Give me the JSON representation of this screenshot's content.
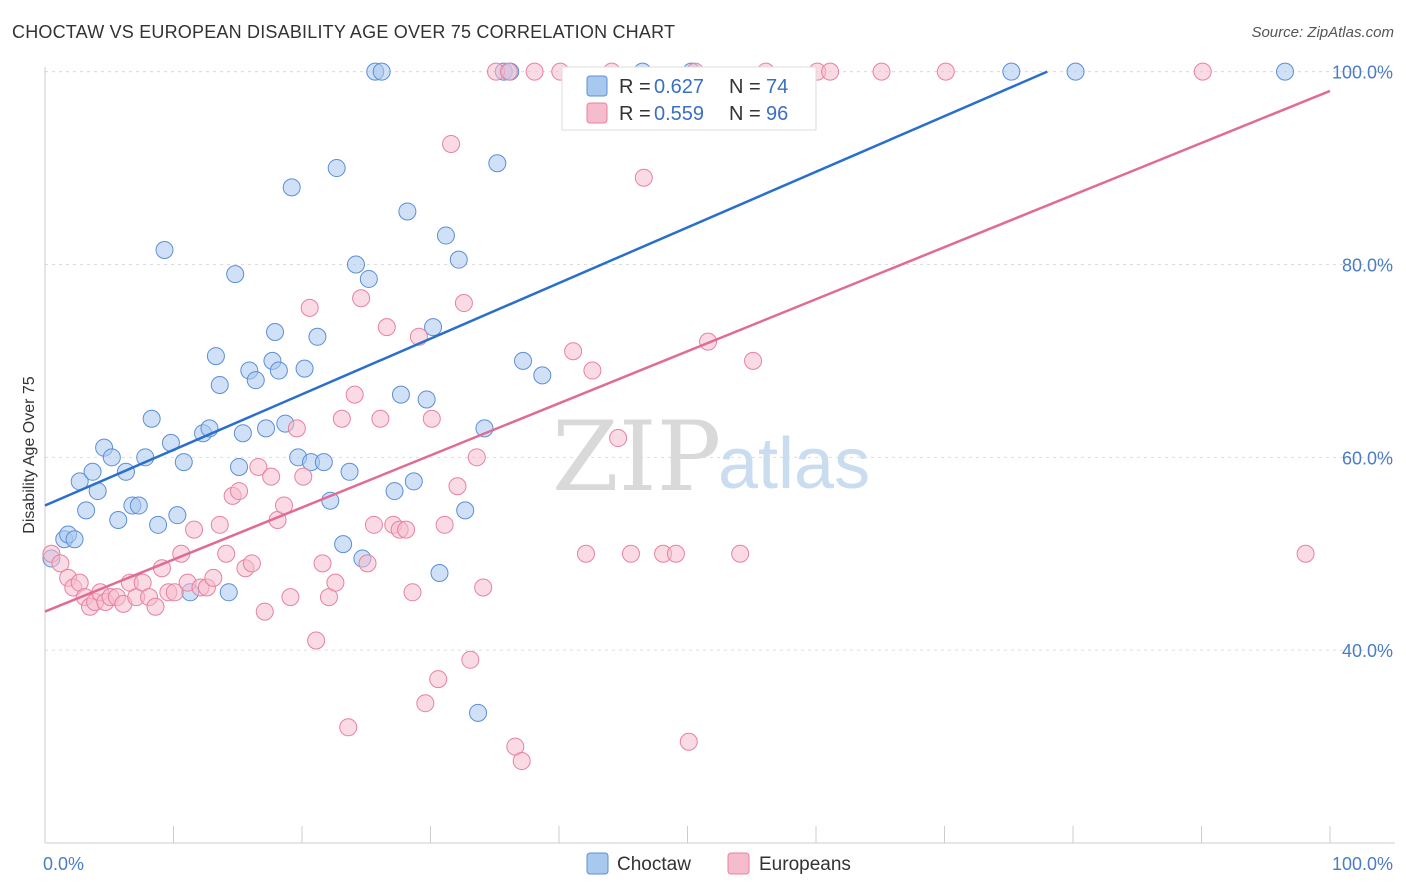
{
  "title": "CHOCTAW VS EUROPEAN DISABILITY AGE OVER 75 CORRELATION CHART",
  "source": "Source: ZipAtlas.com",
  "watermark": {
    "zip": "ZIP",
    "atlas": "atlas"
  },
  "legend": {
    "rows": [
      {
        "r_label": "R =",
        "r_value": "0.627",
        "n_label": "N =",
        "n_value": "74",
        "color": "#a9c8f0",
        "stroke": "#5b8fd6"
      },
      {
        "r_label": "R =",
        "r_value": "0.559",
        "n_label": "N =",
        "n_value": "96",
        "color": "#f5bccd",
        "stroke": "#e8829e"
      }
    ]
  },
  "chart_data": {
    "type": "scatter",
    "title": "CHOCTAW VS EUROPEAN DISABILITY AGE OVER 75 CORRELATION CHART",
    "xlabel": "",
    "ylabel": "Disability Age Over 75",
    "xlim": [
      0,
      100
    ],
    "ylim": [
      20,
      101
    ],
    "x_tick_labels": [
      "0.0%",
      "100.0%"
    ],
    "y_ticks": [
      40,
      60,
      80,
      100
    ],
    "y_tick_labels": [
      "40.0%",
      "60.0%",
      "80.0%",
      "100.0%"
    ],
    "grid": true,
    "legend_position": "top-center",
    "series": [
      {
        "name": "Choctaw",
        "color": "#a9c8f0",
        "stroke": "#5b8fd6",
        "line_color": "#2a6fcc",
        "trend": {
          "x0": 0,
          "y0": 55,
          "x1": 78,
          "y1": 100
        },
        "points": [
          [
            0.5,
            49.5
          ],
          [
            1.5,
            51.5
          ],
          [
            1.8,
            52
          ],
          [
            2.3,
            51.5
          ],
          [
            2.7,
            57.5
          ],
          [
            3.2,
            54.5
          ],
          [
            3.7,
            58.5
          ],
          [
            4.1,
            56.5
          ],
          [
            4.6,
            61
          ],
          [
            5.2,
            60
          ],
          [
            5.7,
            53.5
          ],
          [
            6.3,
            58.5
          ],
          [
            6.8,
            55
          ],
          [
            7.3,
            55
          ],
          [
            7.8,
            60
          ],
          [
            8.3,
            64
          ],
          [
            8.8,
            53
          ],
          [
            9.3,
            81.5
          ],
          [
            9.8,
            61.5
          ],
          [
            10.3,
            54
          ],
          [
            10.8,
            59.5
          ],
          [
            11.3,
            46
          ],
          [
            12.3,
            62.5
          ],
          [
            12.8,
            63
          ],
          [
            13.3,
            70.5
          ],
          [
            13.6,
            67.5
          ],
          [
            14.3,
            46
          ],
          [
            14.8,
            79
          ],
          [
            15.1,
            59
          ],
          [
            15.4,
            62.5
          ],
          [
            15.9,
            69
          ],
          [
            16.4,
            68
          ],
          [
            17.2,
            63
          ],
          [
            17.7,
            70
          ],
          [
            17.9,
            73
          ],
          [
            18.2,
            69
          ],
          [
            18.7,
            63.5
          ],
          [
            19.2,
            88
          ],
          [
            19.7,
            60
          ],
          [
            20.2,
            69.2
          ],
          [
            20.7,
            59.5
          ],
          [
            21.2,
            72.5
          ],
          [
            21.7,
            59.5
          ],
          [
            22.2,
            55.5
          ],
          [
            22.7,
            90
          ],
          [
            23.2,
            51
          ],
          [
            23.7,
            58.5
          ],
          [
            24.2,
            80
          ],
          [
            24.7,
            49.5
          ],
          [
            25.2,
            78.5
          ],
          [
            25.7,
            100
          ],
          [
            26.2,
            100
          ],
          [
            27.2,
            56.5
          ],
          [
            27.7,
            66.5
          ],
          [
            28.2,
            85.5
          ],
          [
            28.7,
            57.5
          ],
          [
            29.7,
            66
          ],
          [
            30.2,
            73.5
          ],
          [
            30.7,
            48
          ],
          [
            31.2,
            83
          ],
          [
            32.2,
            80.5
          ],
          [
            32.7,
            54.5
          ],
          [
            33.7,
            33.5
          ],
          [
            34.2,
            63
          ],
          [
            35.2,
            90.5
          ],
          [
            35.7,
            100
          ],
          [
            36.2,
            100
          ],
          [
            37.2,
            70
          ],
          [
            38.7,
            68.5
          ],
          [
            46.5,
            100
          ],
          [
            50.3,
            100
          ],
          [
            75.2,
            100
          ],
          [
            80.2,
            100
          ],
          [
            96.5,
            100
          ]
        ]
      },
      {
        "name": "Europeans",
        "color": "#f5bccd",
        "stroke": "#e8829e",
        "line_color": "#e06b93",
        "trend": {
          "x0": 0,
          "y0": 44,
          "x1": 100,
          "y1": 98
        }
      }
    ],
    "europeans_points": [
      [
        0.5,
        50
      ],
      [
        1.2,
        49
      ],
      [
        1.8,
        47.5
      ],
      [
        2.2,
        46.5
      ],
      [
        2.7,
        47
      ],
      [
        3.1,
        45.5
      ],
      [
        3.5,
        44.5
      ],
      [
        3.9,
        45
      ],
      [
        4.3,
        46
      ],
      [
        4.7,
        45
      ],
      [
        5.1,
        45.5
      ],
      [
        5.6,
        45.5
      ],
      [
        6.1,
        44.8
      ],
      [
        6.6,
        47
      ],
      [
        7.1,
        45.5
      ],
      [
        7.6,
        47
      ],
      [
        8.1,
        45.5
      ],
      [
        8.6,
        44.5
      ],
      [
        9.1,
        48.5
      ],
      [
        9.6,
        46
      ],
      [
        10.1,
        46
      ],
      [
        10.6,
        50
      ],
      [
        11.1,
        47
      ],
      [
        11.6,
        52.5
      ],
      [
        12.1,
        46.5
      ],
      [
        12.6,
        46.5
      ],
      [
        13.1,
        47.5
      ],
      [
        13.6,
        53
      ],
      [
        14.1,
        50
      ],
      [
        14.6,
        56
      ],
      [
        15.1,
        56.5
      ],
      [
        15.6,
        48.5
      ],
      [
        16.1,
        49
      ],
      [
        16.6,
        59
      ],
      [
        17.1,
        44
      ],
      [
        17.6,
        58
      ],
      [
        18.1,
        53.5
      ],
      [
        18.6,
        55
      ],
      [
        19.1,
        45.5
      ],
      [
        19.6,
        63
      ],
      [
        20.1,
        58
      ],
      [
        20.6,
        75.5
      ],
      [
        21.1,
        41
      ],
      [
        21.6,
        49
      ],
      [
        22.1,
        45.5
      ],
      [
        22.6,
        47
      ],
      [
        23.1,
        64
      ],
      [
        23.6,
        32
      ],
      [
        24.1,
        66.5
      ],
      [
        24.6,
        76.5
      ],
      [
        25.1,
        49
      ],
      [
        25.6,
        53
      ],
      [
        26.1,
        64
      ],
      [
        26.6,
        73.5
      ],
      [
        27.1,
        53
      ],
      [
        27.6,
        52.5
      ],
      [
        28.1,
        52.5
      ],
      [
        28.6,
        46
      ],
      [
        29.1,
        72.5
      ],
      [
        29.6,
        34.5
      ],
      [
        30.1,
        64
      ],
      [
        30.6,
        37
      ],
      [
        31.1,
        53
      ],
      [
        31.6,
        92.5
      ],
      [
        32.1,
        57
      ],
      [
        32.6,
        76
      ],
      [
        33.1,
        39
      ],
      [
        33.6,
        60
      ],
      [
        34.1,
        46.5
      ],
      [
        35.1,
        100
      ],
      [
        36.1,
        100
      ],
      [
        36.6,
        30
      ],
      [
        37.1,
        28.5
      ],
      [
        38.1,
        100
      ],
      [
        40.1,
        100
      ],
      [
        41.1,
        71
      ],
      [
        42.1,
        50
      ],
      [
        42.6,
        69
      ],
      [
        44.1,
        100
      ],
      [
        44.6,
        62
      ],
      [
        45.6,
        50
      ],
      [
        46.6,
        89
      ],
      [
        48.1,
        50
      ],
      [
        49.1,
        50
      ],
      [
        50.1,
        30.5
      ],
      [
        50.6,
        100
      ],
      [
        51.6,
        72
      ],
      [
        54.1,
        50
      ],
      [
        55.1,
        70
      ],
      [
        56.1,
        100
      ],
      [
        60.1,
        100
      ],
      [
        61.1,
        100
      ],
      [
        65.1,
        100
      ],
      [
        70.1,
        100
      ],
      [
        90.1,
        100
      ],
      [
        98.1,
        50
      ]
    ]
  },
  "bottom_legend": [
    {
      "label": "Choctaw",
      "color": "#a9c8f0",
      "stroke": "#5b8fd6"
    },
    {
      "label": "Europeans",
      "color": "#f5bccd",
      "stroke": "#e8829e"
    }
  ]
}
